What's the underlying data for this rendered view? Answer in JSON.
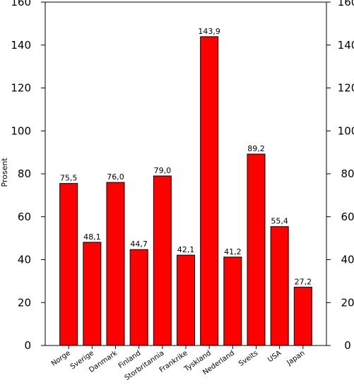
{
  "chart_data": {
    "type": "bar",
    "categories": [
      "Norge",
      "Sverige",
      "Danmark",
      "Finland",
      "Storbritannia",
      "Frankrike",
      "Tyskland",
      "Nederland",
      "Sveits",
      "USA",
      "Japan"
    ],
    "values": [
      75.5,
      48.1,
      76.0,
      44.7,
      79.0,
      42.1,
      143.9,
      41.2,
      89.2,
      55.4,
      27.2
    ],
    "value_labels": [
      "75,5",
      "48,1",
      "76,0",
      "44,7",
      "79,0",
      "42,1",
      "143,9",
      "41,2",
      "89,2",
      "55,4",
      "27,2"
    ],
    "ylabel": "Prosent",
    "ylim": [
      0,
      160
    ],
    "yticks": [
      0,
      20,
      40,
      60,
      80,
      100,
      120,
      140,
      160
    ],
    "ytick_labels": [
      "0",
      "20",
      "40",
      "60",
      "80",
      "100",
      "120",
      "140",
      "160"
    ],
    "grid": false,
    "bar_color": "#ff0000",
    "bar_edge_color": "#000000"
  }
}
